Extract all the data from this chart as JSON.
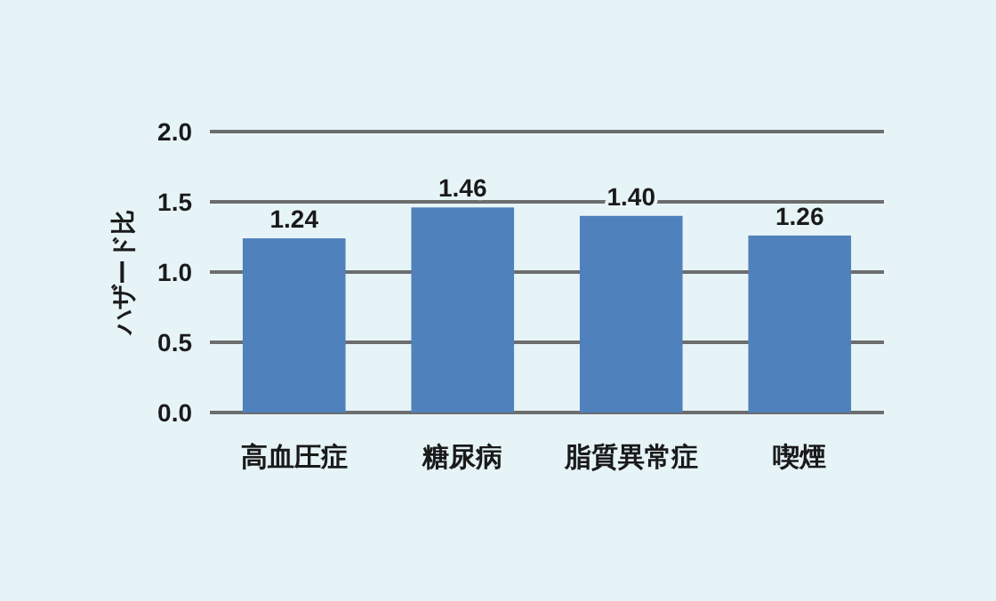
{
  "chart_data": {
    "type": "bar",
    "ylabel": "ハザード比",
    "categories": [
      "高血圧症",
      "糖尿病",
      "脂質異常症",
      "喫煙"
    ],
    "values": [
      1.24,
      1.46,
      1.4,
      1.26
    ],
    "value_labels": [
      "1.24",
      "1.46",
      "1.40",
      "1.26"
    ],
    "color": "#4f81bd",
    "ylim": [
      0,
      2
    ],
    "yticks": [
      {
        "value": 0,
        "label": "0.0"
      },
      0.5,
      {
        "value": 1,
        "label": "1.0"
      },
      1.5,
      {
        "value": 2,
        "label": "2.0"
      }
    ],
    "grid": "y"
  }
}
